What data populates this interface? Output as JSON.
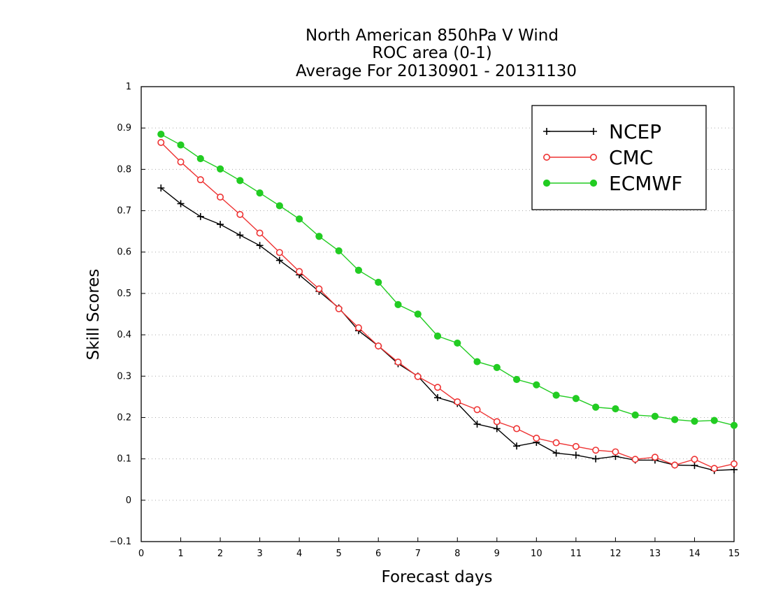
{
  "chart_data": {
    "type": "line",
    "title_lines": [
      "North American 850hPa V Wind",
      "ROC area (0-1)",
      "Average For 20130901 - 20131130"
    ],
    "xlabel": "Forecast days",
    "ylabel": "Skill Scores",
    "xlim": [
      0,
      15
    ],
    "ylim": [
      -0.1,
      1
    ],
    "x_ticks": [
      0,
      1,
      2,
      3,
      4,
      5,
      6,
      7,
      8,
      9,
      10,
      11,
      12,
      13,
      14,
      15
    ],
    "y_ticks": [
      -0.1,
      0,
      0.1,
      0.2,
      0.3,
      0.4,
      0.5,
      0.6,
      0.7,
      0.8,
      0.9,
      1
    ],
    "y_tick_labels": [
      "−0.1",
      "0",
      "0.1",
      "0.2",
      "0.3",
      "0.4",
      "0.5",
      "0.6",
      "0.7",
      "0.8",
      "0.9",
      "1"
    ],
    "grid": "horizontal dotted",
    "legend_position": "top-right",
    "x": [
      0.5,
      1,
      1.5,
      2,
      2.5,
      3,
      3.5,
      4,
      4.5,
      5,
      5.5,
      6,
      6.5,
      7,
      7.5,
      8,
      8.5,
      9,
      9.5,
      10,
      10.5,
      11,
      11.5,
      12,
      12.5,
      13,
      13.5,
      14,
      14.5,
      15
    ],
    "series": [
      {
        "name": "NCEP",
        "color": "#000000",
        "marker": "plus",
        "values": [
          0.755,
          0.717,
          0.686,
          0.667,
          0.641,
          0.616,
          0.58,
          0.545,
          0.505,
          0.465,
          0.41,
          0.373,
          0.33,
          0.3,
          0.248,
          0.234,
          0.184,
          0.173,
          0.131,
          0.14,
          0.114,
          0.109,
          0.1,
          0.106,
          0.097,
          0.097,
          0.085,
          0.084,
          0.072,
          0.074
        ]
      },
      {
        "name": "CMC",
        "color": "#ee3333",
        "marker": "open-circle",
        "values": [
          0.865,
          0.818,
          0.775,
          0.733,
          0.691,
          0.646,
          0.599,
          0.553,
          0.511,
          0.463,
          0.417,
          0.373,
          0.334,
          0.299,
          0.273,
          0.238,
          0.219,
          0.19,
          0.173,
          0.15,
          0.139,
          0.13,
          0.121,
          0.117,
          0.099,
          0.104,
          0.085,
          0.099,
          0.077,
          0.088
        ]
      },
      {
        "name": "ECMWF",
        "color": "#22cc22",
        "marker": "filled-circle",
        "values": [
          0.885,
          0.859,
          0.826,
          0.801,
          0.773,
          0.743,
          0.712,
          0.68,
          0.638,
          0.603,
          0.556,
          0.527,
          0.473,
          0.45,
          0.397,
          0.38,
          0.335,
          0.321,
          0.292,
          0.279,
          0.254,
          0.246,
          0.225,
          0.221,
          0.206,
          0.203,
          0.195,
          0.191,
          0.193,
          0.181
        ]
      }
    ]
  }
}
